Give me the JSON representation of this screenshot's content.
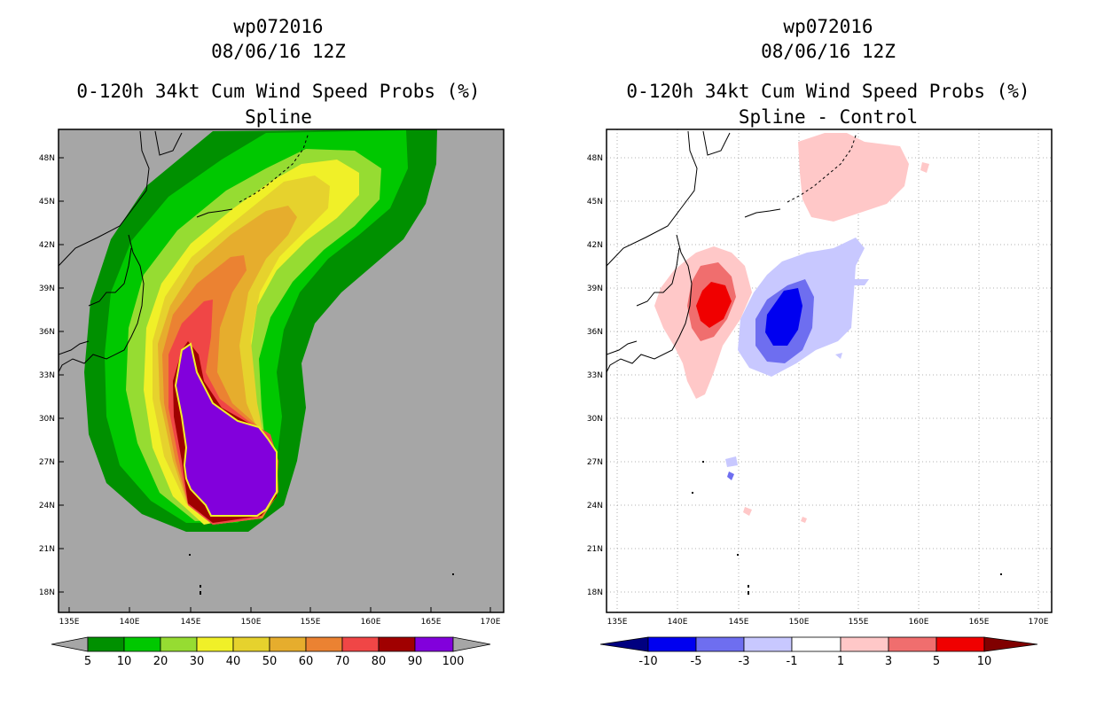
{
  "left_panel": {
    "storm_id": "wp072016",
    "datetime": "08/06/16 12Z",
    "product": "0-120h 34kt Cum Wind Speed Probs (%)",
    "subtitle": "Spline",
    "lat_labels": [
      "48N",
      "45N",
      "42N",
      "39N",
      "36N",
      "33N",
      "30N",
      "27N",
      "24N",
      "21N",
      "18N"
    ],
    "lon_labels": [
      "135E",
      "140E",
      "145E",
      "150E",
      "155E",
      "160E",
      "165E",
      "170E"
    ],
    "colorbar": {
      "colors": [
        "#a6a6a6",
        "#009000",
        "#00c800",
        "#96dc32",
        "#f0f028",
        "#e6d22d",
        "#e6ad2d",
        "#eb8232",
        "#f04646",
        "#a00000",
        "#8200dc",
        "#a6a6a6"
      ],
      "labels": [
        "5",
        "10",
        "20",
        "30",
        "40",
        "50",
        "60",
        "70",
        "80",
        "90",
        "100"
      ]
    }
  },
  "right_panel": {
    "storm_id": "wp072016",
    "datetime": "08/06/16 12Z",
    "product": "0-120h 34kt Cum Wind Speed Probs (%)",
    "subtitle": "Spline - Control",
    "lat_labels": [
      "48N",
      "45N",
      "42N",
      "39N",
      "36N",
      "33N",
      "30N",
      "27N",
      "24N",
      "21N",
      "18N"
    ],
    "lon_labels": [
      "135E",
      "140E",
      "145E",
      "150E",
      "155E",
      "160E",
      "165E",
      "170E"
    ],
    "colorbar": {
      "colors": [
        "#000080",
        "#0000f0",
        "#6e6ef0",
        "#c8c8ff",
        "#ffffff",
        "#ffc8c8",
        "#f06e6e",
        "#f00000",
        "#800000"
      ],
      "labels": [
        "-10",
        "-5",
        "-3",
        "-1",
        "1",
        "3",
        "5",
        "10"
      ]
    }
  }
}
